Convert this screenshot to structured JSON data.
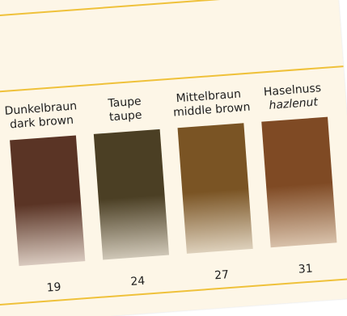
{
  "swatches": [
    {
      "name_de": "Dunkelbraun",
      "name_en": "dark brown",
      "number": "19",
      "color": "#5a3425",
      "fade": "#d9cabf"
    },
    {
      "name_de": "Taupe",
      "name_en": "taupe",
      "number": "24",
      "color": "#4b3f24",
      "fade": "#cfc7b7"
    },
    {
      "name_de": "Mittelbraun",
      "name_en": "middle brown",
      "number": "27",
      "color": "#7a5424",
      "fade": "#ddd0bb"
    },
    {
      "name_de": "Haselnuss",
      "name_en": "hazlenut",
      "number": "31",
      "color": "#7f4a24",
      "fade": "#d8c1aa"
    }
  ],
  "colors": {
    "paper": "#fdf6e7",
    "accent_line": "#efc13a",
    "text": "#1e1e1e"
  }
}
